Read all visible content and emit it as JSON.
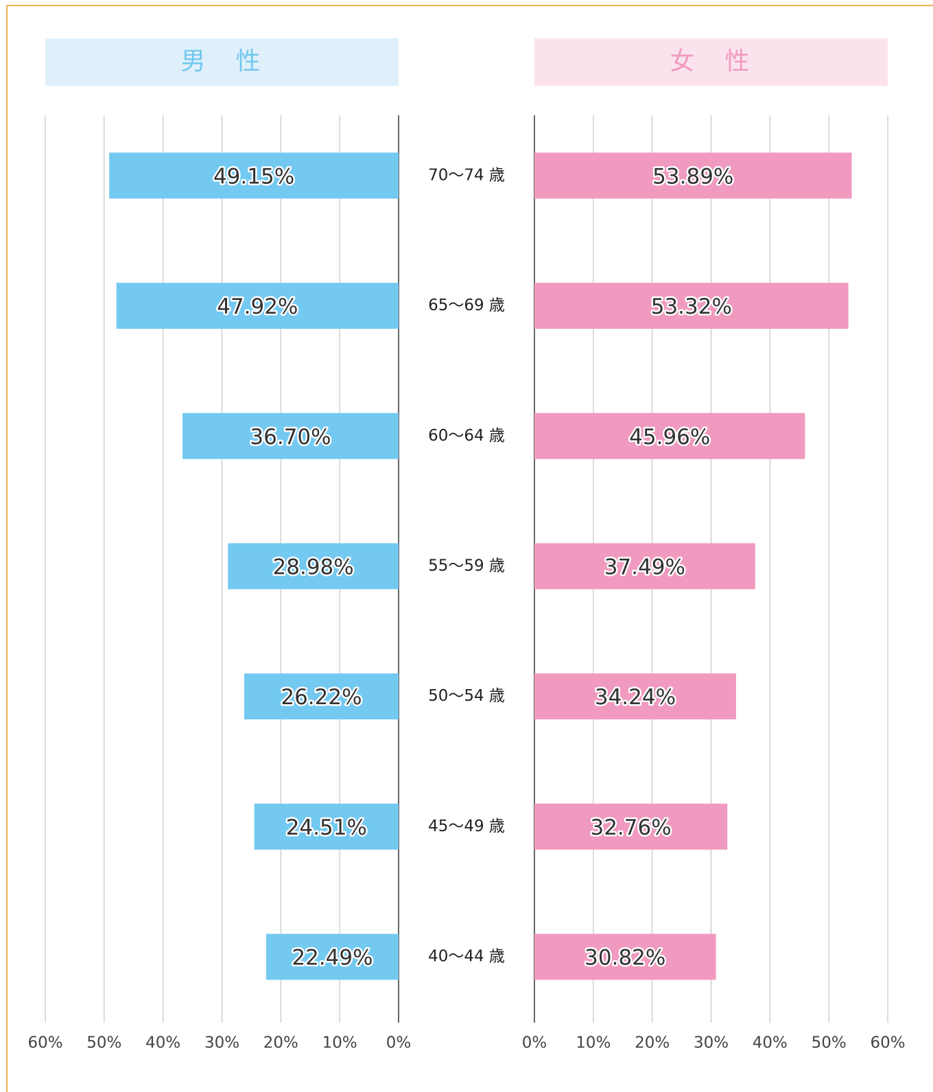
{
  "chart_data": [
    {
      "type": "bar",
      "title": "男　性",
      "color": "#74c9f1",
      "title_color": "#72c8ef",
      "title_background": "#dff0fb",
      "categories": [
        "70〜74 歳",
        "65〜69 歳",
        "60〜64 歳",
        "55〜59 歳",
        "50〜54 歳",
        "45〜49 歳",
        "40〜44 歳"
      ],
      "values": [
        49.15,
        47.92,
        36.7,
        28.98,
        26.22,
        24.51,
        22.49
      ],
      "value_labels": [
        "49.15%",
        "47.92%",
        "36.70%",
        "28.98%",
        "26.22%",
        "24.51%",
        "22.49%"
      ],
      "xlim": [
        60,
        0
      ],
      "xticks": [
        {
          "value": 60,
          "label": "60%"
        },
        {
          "value": 50,
          "label": "50%"
        },
        {
          "value": 40,
          "label": "40%"
        },
        {
          "value": 30,
          "label": "30%"
        },
        {
          "value": 20,
          "label": "20%"
        },
        {
          "value": 10,
          "label": "10%"
        },
        {
          "value": 0,
          "label": "0%"
        }
      ],
      "grid": true
    },
    {
      "type": "bar",
      "title": "女　性",
      "color": "#f09abf",
      "title_color": "#f09abe",
      "title_background": "#fbe3ee",
      "values": [
        53.89,
        53.32,
        45.96,
        37.49,
        34.24,
        32.76,
        30.82
      ],
      "value_labels": [
        "53.89%",
        "53.32%",
        "45.96%",
        "37.49%",
        "34.24%",
        "32.76%",
        "30.82%"
      ],
      "xlim": [
        0,
        60
      ],
      "xticks": [
        {
          "value": 0,
          "label": "0%"
        },
        {
          "value": 10,
          "label": "10%"
        },
        {
          "value": 20,
          "label": "20%"
        },
        {
          "value": 30,
          "label": "30%"
        },
        {
          "value": 40,
          "label": "40%"
        },
        {
          "value": 50,
          "label": "50%"
        },
        {
          "value": 60,
          "label": "60%"
        }
      ],
      "grid": true
    }
  ]
}
